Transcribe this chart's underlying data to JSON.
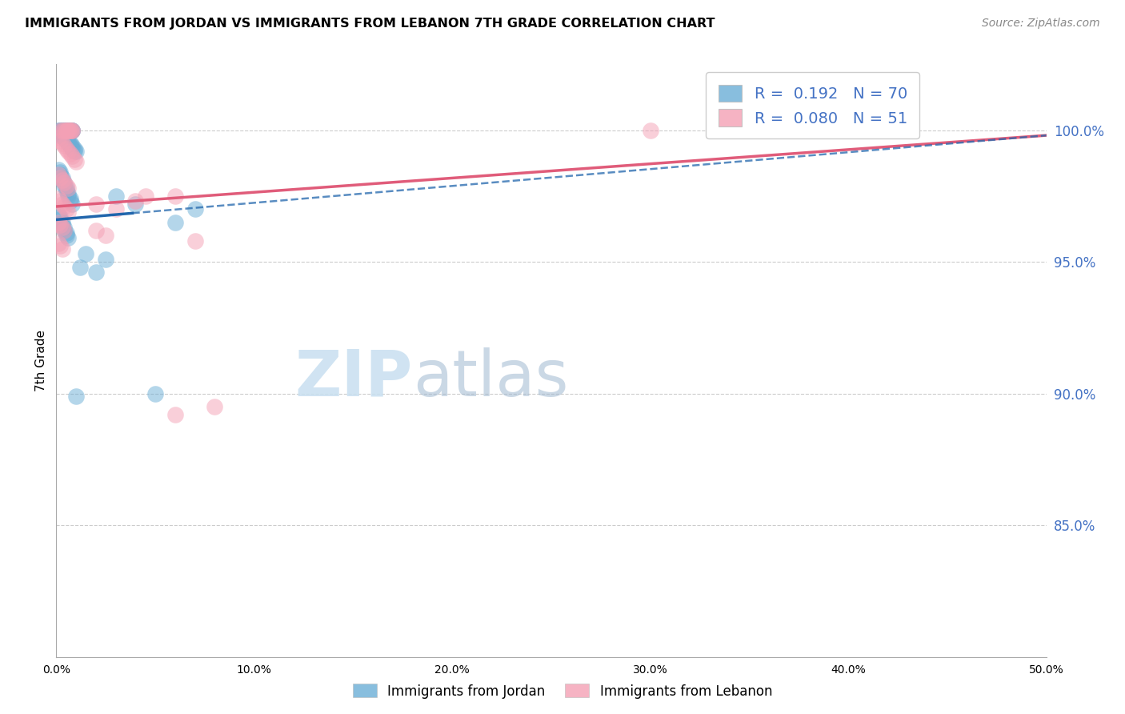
{
  "title": "IMMIGRANTS FROM JORDAN VS IMMIGRANTS FROM LEBANON 7TH GRADE CORRELATION CHART",
  "source": "Source: ZipAtlas.com",
  "ylabel": "7th Grade",
  "ytick_values": [
    1.0,
    0.95,
    0.9,
    0.85
  ],
  "xlim": [
    0.0,
    0.5
  ],
  "ylim": [
    0.8,
    1.025
  ],
  "jordan_R": 0.192,
  "jordan_N": 70,
  "lebanon_R": 0.08,
  "lebanon_N": 51,
  "jordan_color": "#6baed6",
  "lebanon_color": "#f4a0b5",
  "jordan_line_color": "#2166ac",
  "lebanon_line_color": "#e05c7a",
  "watermark_zip": "ZIP",
  "watermark_atlas": "atlas",
  "jordan_scatter": [
    [
      0.001,
      1.0
    ],
    [
      0.002,
      1.0
    ],
    [
      0.002,
      1.0
    ],
    [
      0.003,
      1.0
    ],
    [
      0.003,
      1.0
    ],
    [
      0.004,
      1.0
    ],
    [
      0.004,
      1.0
    ],
    [
      0.005,
      1.0
    ],
    [
      0.005,
      1.0
    ],
    [
      0.005,
      1.0
    ],
    [
      0.006,
      1.0
    ],
    [
      0.006,
      1.0
    ],
    [
      0.006,
      1.0
    ],
    [
      0.006,
      1.0
    ],
    [
      0.007,
      1.0
    ],
    [
      0.007,
      1.0
    ],
    [
      0.007,
      1.0
    ],
    [
      0.008,
      1.0
    ],
    [
      0.008,
      1.0
    ],
    [
      0.008,
      1.0
    ],
    [
      0.001,
      0.998
    ],
    [
      0.002,
      0.998
    ],
    [
      0.003,
      0.998
    ],
    [
      0.004,
      0.998
    ],
    [
      0.004,
      0.997
    ],
    [
      0.005,
      0.997
    ],
    [
      0.005,
      0.996
    ],
    [
      0.006,
      0.996
    ],
    [
      0.006,
      0.995
    ],
    [
      0.007,
      0.995
    ],
    [
      0.007,
      0.994
    ],
    [
      0.008,
      0.994
    ],
    [
      0.008,
      0.993
    ],
    [
      0.009,
      0.993
    ],
    [
      0.009,
      0.992
    ],
    [
      0.01,
      0.992
    ],
    [
      0.001,
      0.985
    ],
    [
      0.002,
      0.984
    ],
    [
      0.002,
      0.983
    ],
    [
      0.003,
      0.982
    ],
    [
      0.003,
      0.981
    ],
    [
      0.004,
      0.98
    ],
    [
      0.004,
      0.979
    ],
    [
      0.005,
      0.978
    ],
    [
      0.005,
      0.977
    ],
    [
      0.006,
      0.976
    ],
    [
      0.006,
      0.975
    ],
    [
      0.007,
      0.974
    ],
    [
      0.007,
      0.973
    ],
    [
      0.008,
      0.972
    ],
    [
      0.001,
      0.968
    ],
    [
      0.002,
      0.967
    ],
    [
      0.002,
      0.966
    ],
    [
      0.003,
      0.965
    ],
    [
      0.003,
      0.964
    ],
    [
      0.004,
      0.963
    ],
    [
      0.004,
      0.962
    ],
    [
      0.005,
      0.961
    ],
    [
      0.005,
      0.96
    ],
    [
      0.006,
      0.959
    ],
    [
      0.03,
      0.975
    ],
    [
      0.04,
      0.972
    ],
    [
      0.015,
      0.953
    ],
    [
      0.025,
      0.951
    ],
    [
      0.012,
      0.948
    ],
    [
      0.02,
      0.946
    ],
    [
      0.05,
      0.9
    ],
    [
      0.01,
      0.899
    ],
    [
      0.07,
      0.97
    ],
    [
      0.06,
      0.965
    ]
  ],
  "lebanon_scatter": [
    [
      0.002,
      1.0
    ],
    [
      0.003,
      1.0
    ],
    [
      0.004,
      1.0
    ],
    [
      0.005,
      1.0
    ],
    [
      0.005,
      1.0
    ],
    [
      0.006,
      1.0
    ],
    [
      0.006,
      1.0
    ],
    [
      0.007,
      1.0
    ],
    [
      0.007,
      1.0
    ],
    [
      0.008,
      1.0
    ],
    [
      0.008,
      1.0
    ],
    [
      0.001,
      0.997
    ],
    [
      0.002,
      0.996
    ],
    [
      0.003,
      0.995
    ],
    [
      0.004,
      0.994
    ],
    [
      0.005,
      0.993
    ],
    [
      0.006,
      0.992
    ],
    [
      0.007,
      0.991
    ],
    [
      0.008,
      0.99
    ],
    [
      0.009,
      0.989
    ],
    [
      0.01,
      0.988
    ],
    [
      0.001,
      0.983
    ],
    [
      0.002,
      0.982
    ],
    [
      0.003,
      0.981
    ],
    [
      0.004,
      0.98
    ],
    [
      0.005,
      0.979
    ],
    [
      0.006,
      0.978
    ],
    [
      0.001,
      0.974
    ],
    [
      0.002,
      0.973
    ],
    [
      0.003,
      0.972
    ],
    [
      0.004,
      0.971
    ],
    [
      0.005,
      0.97
    ],
    [
      0.006,
      0.969
    ],
    [
      0.001,
      0.965
    ],
    [
      0.002,
      0.964
    ],
    [
      0.003,
      0.963
    ],
    [
      0.004,
      0.962
    ],
    [
      0.001,
      0.957
    ],
    [
      0.002,
      0.956
    ],
    [
      0.003,
      0.955
    ],
    [
      0.02,
      0.972
    ],
    [
      0.03,
      0.97
    ],
    [
      0.02,
      0.962
    ],
    [
      0.025,
      0.96
    ],
    [
      0.04,
      0.973
    ],
    [
      0.06,
      0.975
    ],
    [
      0.3,
      1.0
    ],
    [
      0.07,
      0.958
    ],
    [
      0.08,
      0.895
    ],
    [
      0.06,
      0.892
    ],
    [
      0.045,
      0.975
    ]
  ]
}
